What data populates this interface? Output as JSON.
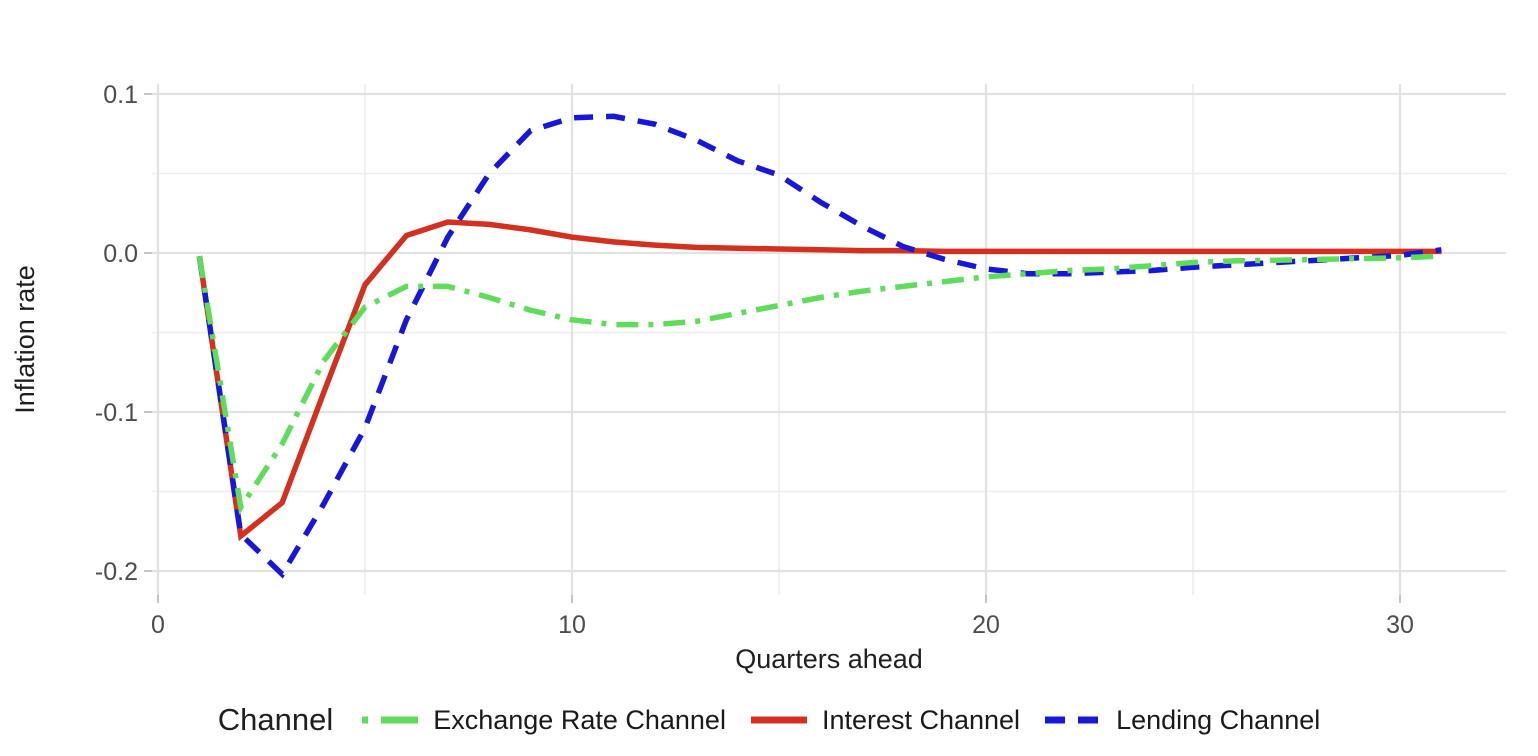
{
  "chart_data": {
    "type": "line",
    "title": "",
    "xlabel": "Quarters ahead",
    "ylabel": "Inflation rate",
    "xlim": [
      -0.2,
      32.6
    ],
    "ylim": [
      -0.215,
      0.106
    ],
    "grid": "on",
    "legend_position": "bottom",
    "x_ticks": [
      {
        "v": 0,
        "label": "0"
      },
      {
        "v": 10,
        "label": "10"
      },
      {
        "v": 20,
        "label": "20"
      },
      {
        "v": 30,
        "label": "30"
      }
    ],
    "x_minor_ticks": [
      5,
      15,
      25
    ],
    "y_ticks": [
      {
        "v": 0.1,
        "label": "0.1"
      },
      {
        "v": 0.0,
        "label": "0.0"
      },
      {
        "v": -0.1,
        "label": "-0.1"
      },
      {
        "v": -0.2,
        "label": "-0.2"
      }
    ],
    "y_minor_ticks": [
      0.05,
      -0.05,
      -0.15
    ],
    "x": [
      1,
      2,
      3,
      4,
      5,
      6,
      7,
      8,
      9,
      10,
      11,
      12,
      13,
      14,
      15,
      16,
      17,
      18,
      19,
      20,
      21,
      22,
      23,
      24,
      25,
      26,
      27,
      28,
      29,
      30,
      31
    ],
    "series": [
      {
        "name": "Interest Channel",
        "color": "#D4301F",
        "linestyle": "solid",
        "values": [
          -0.002,
          -0.178,
          -0.157,
          -0.088,
          -0.02,
          0.011,
          0.0195,
          0.018,
          0.0145,
          0.01,
          0.007,
          0.005,
          0.0035,
          0.003,
          0.0025,
          0.002,
          0.0015,
          0.0015,
          0.001,
          0.001,
          0.001,
          0.001,
          0.001,
          0.001,
          0.001,
          0.001,
          0.001,
          0.001,
          0.001,
          0.001,
          0.001
        ]
      },
      {
        "name": "Lending Channel",
        "color": "#1717DB",
        "linestyle": "dashed",
        "values": [
          -0.002,
          -0.177,
          -0.202,
          -0.158,
          -0.11,
          -0.042,
          0.01,
          0.05,
          0.077,
          0.085,
          0.086,
          0.081,
          0.071,
          0.058,
          0.049,
          0.032,
          0.017,
          0.004,
          -0.004,
          -0.01,
          -0.013,
          -0.013,
          -0.012,
          -0.011,
          -0.009,
          -0.0075,
          -0.006,
          -0.0045,
          -0.003,
          -0.0015,
          0.002
        ]
      },
      {
        "name": "Exchange Rate Channel",
        "color": "#5FDD5A",
        "linestyle": "dotdash",
        "values": [
          -0.002,
          -0.16,
          -0.12,
          -0.068,
          -0.034,
          -0.021,
          -0.021,
          -0.028,
          -0.036,
          -0.042,
          -0.045,
          -0.045,
          -0.043,
          -0.038,
          -0.033,
          -0.028,
          -0.024,
          -0.021,
          -0.018,
          -0.015,
          -0.013,
          -0.011,
          -0.01,
          -0.008,
          -0.006,
          -0.005,
          -0.0045,
          -0.004,
          -0.0035,
          -0.003,
          -0.002
        ]
      }
    ]
  },
  "axes": {
    "x_title": "Quarters ahead",
    "y_title": "Inflation rate"
  },
  "legend": {
    "title": "Channel",
    "items": [
      {
        "label": "Exchange Rate Channel",
        "color": "#5FDD5A",
        "linestyle": "dotdash"
      },
      {
        "label": "Interest Channel",
        "color": "#D4301F",
        "linestyle": "solid"
      },
      {
        "label": "Lending Channel",
        "color": "#1717DB",
        "linestyle": "dashed"
      }
    ]
  },
  "style_colors": {
    "major_grid": "#E2E2E2",
    "minor_grid": "#EDEDED",
    "tick_mark": "#C4C4C4",
    "tick_text": "#4D4D4D",
    "axis_title_text": "#1F1F1F"
  }
}
